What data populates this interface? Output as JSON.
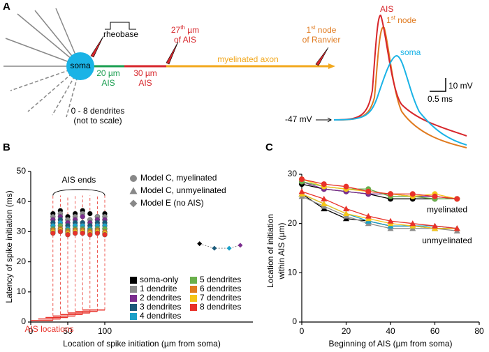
{
  "panel_a": {
    "letter": "A",
    "rheobase": "rheobase",
    "soma": "soma",
    "ais_20": [
      "20 µm",
      "AIS"
    ],
    "ais_30": [
      "30 µm",
      "AIS"
    ],
    "ais_27": {
      "num": "27",
      "sup": "th",
      "rest": " µm",
      "line2": "of AIS"
    },
    "axon": "myelinated axon",
    "node": {
      "num": "1",
      "sup": "st",
      "rest": " node",
      "line2": "of Ranvier"
    },
    "dendrites": [
      "0 - 8 dendrites",
      "(not to scale)"
    ],
    "trace_ais": "AIS",
    "trace_node": {
      "num": "1",
      "sup": "st",
      "rest": " node"
    },
    "trace_soma": "soma",
    "scale_mv": "10 mV",
    "scale_ms": "0.5 ms",
    "rest": "-47 mV"
  },
  "chart_data": [
    {
      "type": "scatter",
      "letter": "B",
      "ylabel": "Latency of spike initiation (ms)",
      "xlabel": "Location of spike initiation (µm from soma)",
      "xlim": [
        0,
        300
      ],
      "xticks": [
        0,
        50,
        100
      ],
      "ylim": [
        0,
        50
      ],
      "yticks": [
        0,
        10,
        20,
        30,
        40,
        50
      ],
      "x": [
        30,
        40,
        50,
        60,
        70,
        80,
        90,
        100
      ],
      "series": [
        {
          "name": "soma-only",
          "color": "#000000",
          "values": [
            36,
            37,
            35,
            36,
            37,
            36,
            35,
            36
          ]
        },
        {
          "name": "1 dendrite",
          "color": "#8c8c8c",
          "values": [
            35,
            36,
            34,
            35,
            36,
            34,
            35,
            35
          ]
        },
        {
          "name": "2 dendrites",
          "color": "#7b2d8e",
          "values": [
            34,
            35,
            33,
            34,
            35,
            33,
            34,
            34
          ]
        },
        {
          "name": "3 dendrites",
          "color": "#1b5a7a",
          "values": [
            33,
            34,
            32,
            33,
            33,
            32,
            33,
            33
          ]
        },
        {
          "name": "4 dendrites",
          "color": "#1aa0c8",
          "values": [
            32,
            33,
            31,
            32,
            32,
            31,
            32,
            32
          ]
        },
        {
          "name": "5 dendrites",
          "color": "#6ab04c",
          "values": [
            31,
            32,
            30.5,
            31,
            31,
            30.5,
            31,
            31
          ]
        },
        {
          "name": "6 dendrites",
          "color": "#e07b20",
          "values": [
            30.5,
            31,
            30,
            30.5,
            30.5,
            30,
            30.5,
            30
          ]
        },
        {
          "name": "7 dendrites",
          "color": "#f5c518",
          "values": [
            30,
            30.5,
            29.5,
            30,
            30,
            29.5,
            30,
            29.5
          ]
        },
        {
          "name": "8 dendrites",
          "color": "#e8322a",
          "values": [
            29.5,
            30,
            29,
            29.5,
            29.5,
            29,
            29.5,
            29
          ]
        }
      ],
      "model_e": {
        "x": [
          228,
          248,
          268,
          283
        ],
        "values": [
          26,
          24.5,
          24.5,
          25.5
        ],
        "colors": [
          "#000000",
          "#1b5a7a",
          "#1aa0c8",
          "#7b2d8e"
        ]
      },
      "ais_locations": {
        "label": "AIS locations",
        "starts": [
          0,
          10,
          20,
          30,
          40,
          50,
          60,
          70
        ],
        "ends": [
          30,
          40,
          50,
          60,
          70,
          80,
          90,
          100
        ],
        "levels": [
          0.5,
          1,
          1.5,
          2,
          2.5,
          3,
          3.5,
          4
        ],
        "color": "#e8322a"
      },
      "ais_ends": "AIS ends",
      "markers": [
        "Model C, myelinated",
        "Model C, unmyelinated",
        "Model E (no AIS)"
      ]
    },
    {
      "type": "line",
      "letter": "C",
      "ylabel": [
        "Location of initiation",
        "within AIS (µm)"
      ],
      "xlabel": "Beginning of AIS (µm from soma)",
      "xlim": [
        0,
        80
      ],
      "xticks": [
        0,
        20,
        40,
        60,
        80
      ],
      "ylim": [
        0,
        30
      ],
      "yticks": [
        0,
        10,
        20,
        30
      ],
      "x": [
        0,
        10,
        20,
        30,
        40,
        50,
        60,
        70
      ],
      "groups": [
        {
          "label": "myelinated",
          "marker": "circle",
          "lines": [
            {
              "color": "#000000",
              "values": [
                28,
                27,
                26.5,
                26,
                25,
                25,
                25,
                25
              ]
            },
            {
              "color": "#7b2d8e",
              "values": [
                28.5,
                27,
                26.5,
                26,
                26,
                25.5,
                25.5,
                25
              ]
            },
            {
              "color": "#6ab04c",
              "values": [
                28.5,
                27.5,
                27,
                27,
                25.5,
                25.5,
                25,
                25
              ]
            },
            {
              "color": "#f5c518",
              "values": [
                29,
                27.5,
                27,
                26.5,
                26,
                25.5,
                26,
                25
              ]
            },
            {
              "color": "#e8322a",
              "values": [
                29,
                28,
                27.5,
                26.5,
                26,
                26,
                25.5,
                25
              ]
            }
          ]
        },
        {
          "label": "unmyelinated",
          "marker": "triangle",
          "lines": [
            {
              "color": "#000000",
              "values": [
                26,
                23,
                21,
                20.5,
                19.5,
                19.5,
                19,
                19
              ]
            },
            {
              "color": "#8c8c8c",
              "values": [
                25.5,
                23.5,
                21.5,
                20,
                19,
                19,
                19,
                18.5
              ]
            },
            {
              "color": "#1aa0c8",
              "values": [
                26,
                24,
                22,
                20.5,
                19.5,
                19.5,
                19.5,
                19
              ]
            },
            {
              "color": "#f5c518",
              "values": [
                26,
                24,
                22,
                21,
                20,
                19.5,
                19,
                19
              ]
            },
            {
              "color": "#e8322a",
              "values": [
                26.5,
                25,
                23,
                21.5,
                20.5,
                20,
                19.5,
                19
              ]
            }
          ]
        }
      ]
    }
  ]
}
